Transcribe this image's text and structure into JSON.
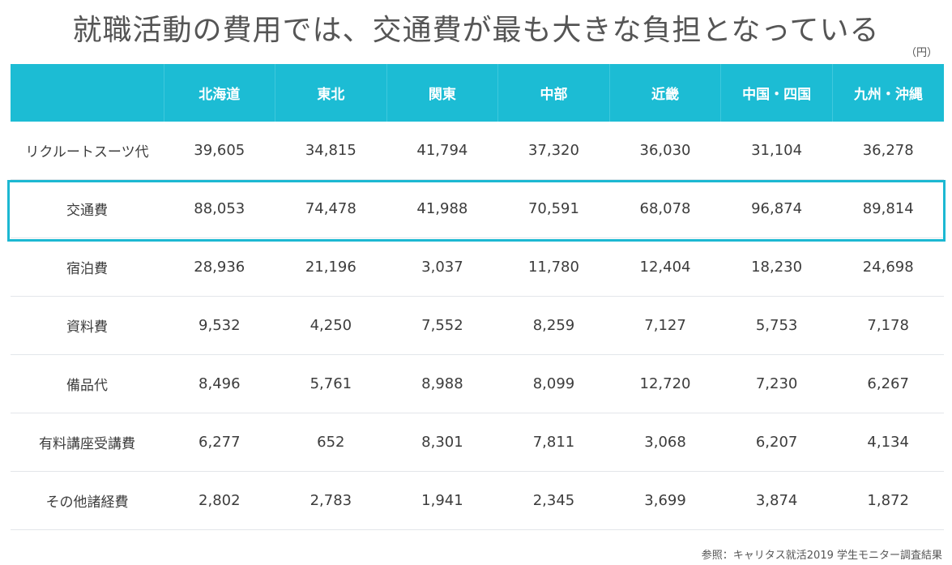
{
  "title": "就職活動の費用では、交通費が最も大きな負担となっている",
  "unit": "（円）",
  "source": "参照：キャリタス就活2019 学生モニター調査結果",
  "colors": {
    "header_bg": "#1cbcd4",
    "highlight_border": "#1cb8d2",
    "row_divider": "#e3e6ea"
  },
  "chart_data": {
    "type": "table",
    "columns": [
      "",
      "北海道",
      "東北",
      "関東",
      "中部",
      "近畿",
      "中国・四国",
      "九州・沖縄"
    ],
    "highlighted_row": "交通費",
    "rows": [
      {
        "label": "リクルートスーツ代",
        "values": [
          "39,605",
          "34,815",
          "41,794",
          "37,320",
          "36,030",
          "31,104",
          "36,278"
        ]
      },
      {
        "label": "交通費",
        "values": [
          "88,053",
          "74,478",
          "41,988",
          "70,591",
          "68,078",
          "96,874",
          "89,814"
        ]
      },
      {
        "label": "宿泊費",
        "values": [
          "28,936",
          "21,196",
          "3,037",
          "11,780",
          "12,404",
          "18,230",
          "24,698"
        ]
      },
      {
        "label": "資料費",
        "values": [
          "9,532",
          "4,250",
          "7,552",
          "8,259",
          "7,127",
          "5,753",
          "7,178"
        ]
      },
      {
        "label": "備品代",
        "values": [
          "8,496",
          "5,761",
          "8,988",
          "8,099",
          "12,720",
          "7,230",
          "6,267"
        ]
      },
      {
        "label": "有料講座受講費",
        "values": [
          "6,277",
          "652",
          "8,301",
          "7,811",
          "3,068",
          "6,207",
          "4,134"
        ]
      },
      {
        "label": "その他諸経費",
        "values": [
          "2,802",
          "2,783",
          "1,941",
          "2,345",
          "3,699",
          "3,874",
          "1,872"
        ]
      }
    ]
  }
}
